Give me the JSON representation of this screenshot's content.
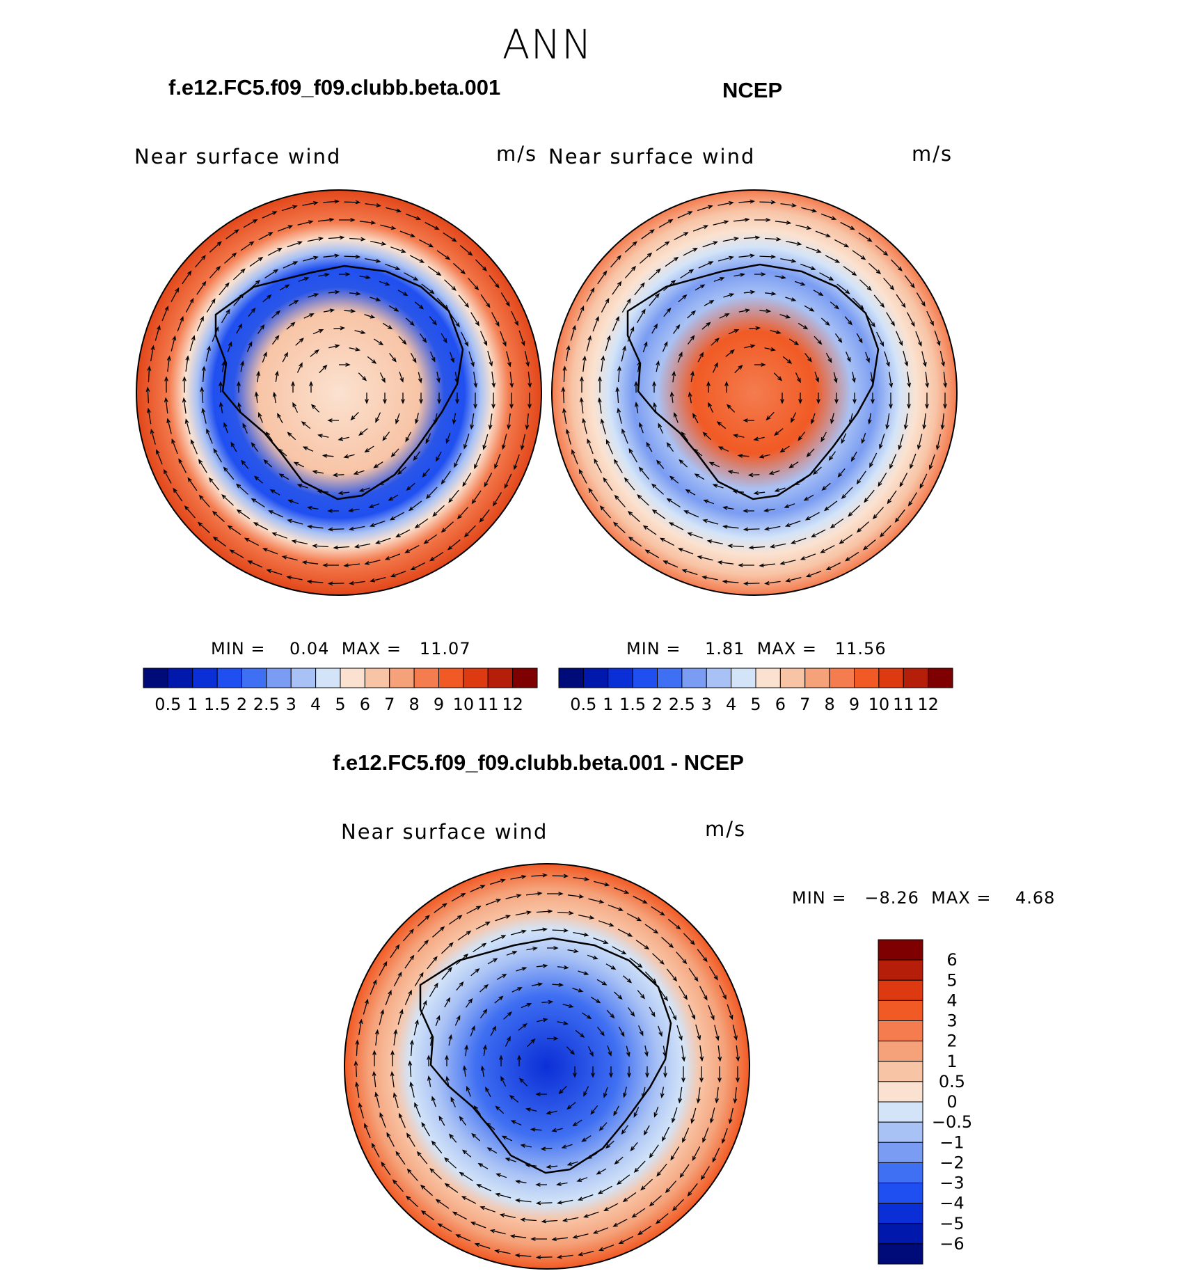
{
  "figure": {
    "season": "ANN",
    "units": "m/s",
    "variable": "Near surface wind"
  },
  "panels": {
    "model": {
      "title": "f.e12.FC5.f09_f09.clubb.beta.001",
      "label": "Near surface wind",
      "units": "m/s",
      "min_text": "MIN =    0.04  MAX =   11.07"
    },
    "obs": {
      "title": "NCEP",
      "label": "Near surface wind",
      "units": "m/s",
      "min_text": "MIN =    1.81  MAX =   11.56"
    },
    "diff": {
      "title": "f.e12.FC5.f09_f09.clubb.beta.001 - NCEP",
      "label": "Near surface wind",
      "units": "m/s",
      "min_text": "MIN =   −8.26  MAX =    4.68"
    }
  },
  "chart_data": [
    {
      "type": "heatmap",
      "name": "model",
      "title": "f.e12.FC5.f09_f09.clubb.beta.001",
      "projection": "south polar stereographic",
      "field": "Near surface wind speed with wind vectors",
      "units": "m/s",
      "min": 0.04,
      "max": 11.07,
      "colorbar_levels": [
        "0.5",
        "1",
        "1.5",
        "2",
        "2.5",
        "3",
        "4",
        "5",
        "6",
        "7",
        "8",
        "9",
        "10",
        "11",
        "12"
      ],
      "colorbar_colors": [
        "#000b7a",
        "#0019ac",
        "#0b2fd6",
        "#1f4ff0",
        "#3f6ff2",
        "#7a9cf2",
        "#a9c2f5",
        "#d3e4f8",
        "#fbe2d0",
        "#f8c4a6",
        "#f5a27a",
        "#f47c4f",
        "#f15a24",
        "#dd3a12",
        "#b51f0a",
        "#7f0000"
      ]
    },
    {
      "type": "heatmap",
      "name": "obs",
      "title": "NCEP",
      "projection": "south polar stereographic",
      "field": "Near surface wind speed with wind vectors",
      "units": "m/s",
      "min": 1.81,
      "max": 11.56,
      "colorbar_levels": [
        "0.5",
        "1",
        "1.5",
        "2",
        "2.5",
        "3",
        "4",
        "5",
        "6",
        "7",
        "8",
        "9",
        "10",
        "11",
        "12"
      ],
      "colorbar_colors": [
        "#000b7a",
        "#0019ac",
        "#0b2fd6",
        "#1f4ff0",
        "#3f6ff2",
        "#7a9cf2",
        "#a9c2f5",
        "#d3e4f8",
        "#fbe2d0",
        "#f8c4a6",
        "#f5a27a",
        "#f47c4f",
        "#f15a24",
        "#dd3a12",
        "#b51f0a",
        "#7f0000"
      ]
    },
    {
      "type": "heatmap",
      "name": "diff",
      "title": "f.e12.FC5.f09_f09.clubb.beta.001 - NCEP",
      "projection": "south polar stereographic",
      "field": "Near surface wind speed difference with wind vectors",
      "units": "m/s",
      "min": -8.26,
      "max": 4.68,
      "colorbar_levels": [
        "6",
        "5",
        "4",
        "3",
        "2",
        "1",
        "0.5",
        "0",
        "−0.5",
        "−1",
        "−2",
        "−3",
        "−4",
        "−5",
        "−6"
      ],
      "colorbar_colors": [
        "#7f0000",
        "#b51f0a",
        "#dd3a12",
        "#f15a24",
        "#f47c4f",
        "#f5a27a",
        "#f8c4a6",
        "#fbe2d0",
        "#d3e4f8",
        "#a9c2f5",
        "#7a9cf2",
        "#3f6ff2",
        "#1f4ff0",
        "#0b2fd6",
        "#0019ac",
        "#000b7a"
      ]
    }
  ]
}
